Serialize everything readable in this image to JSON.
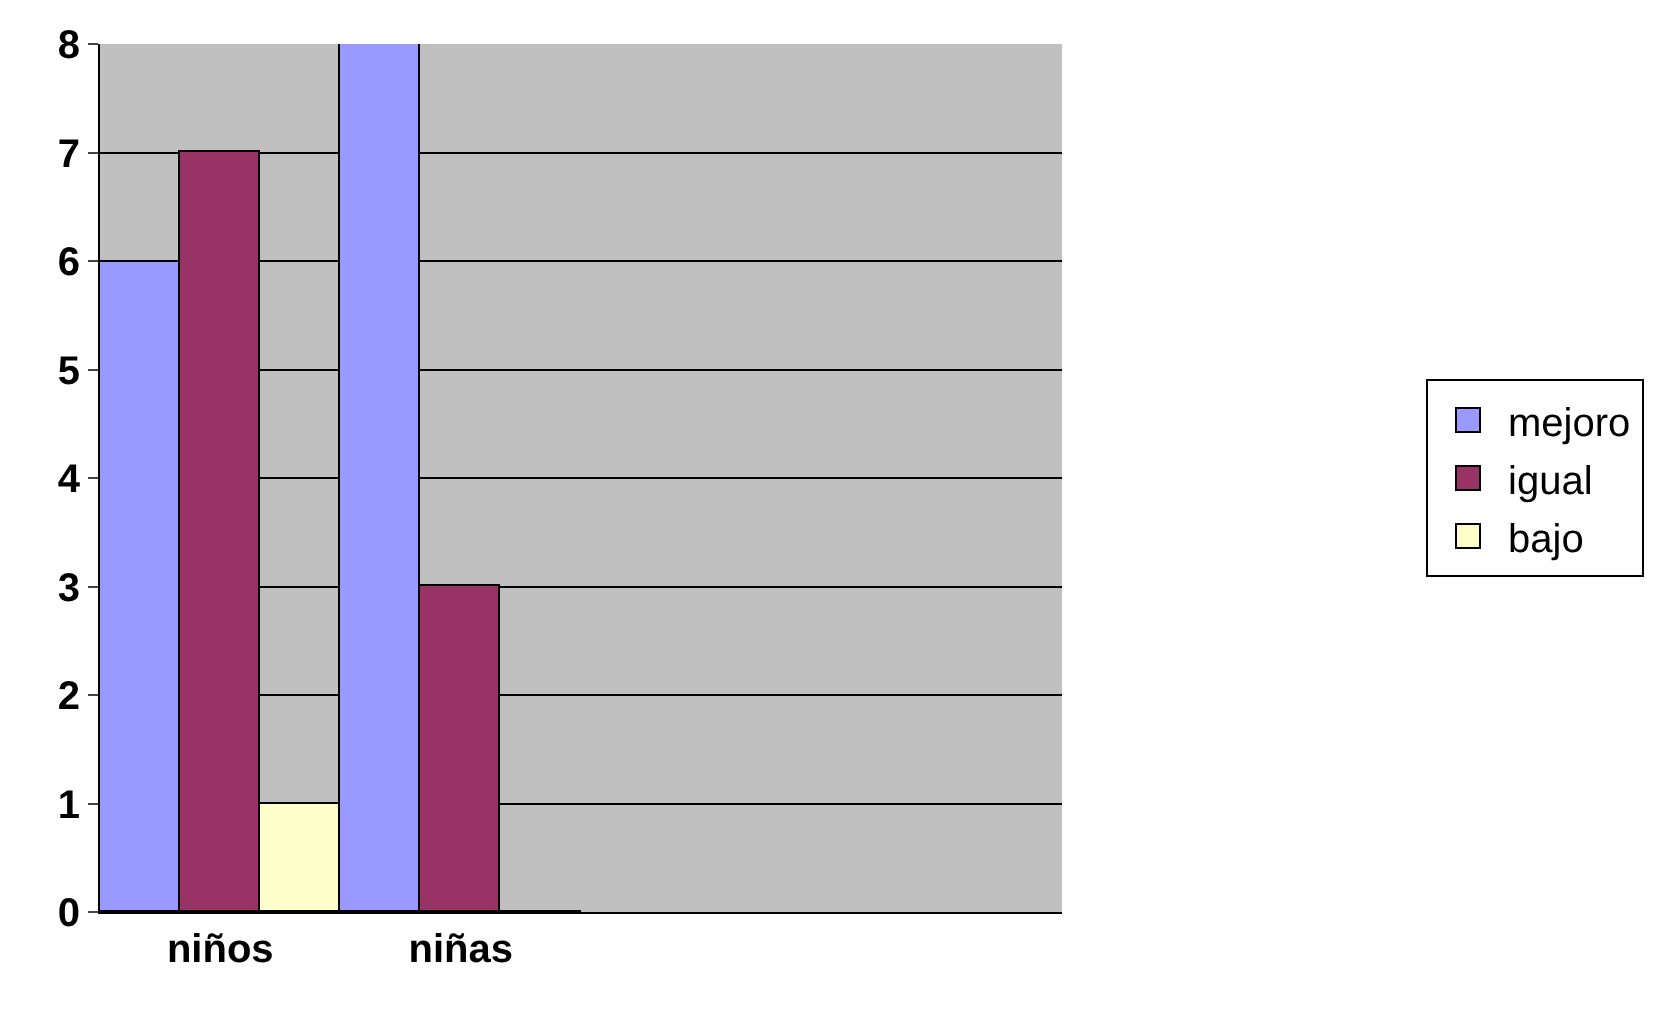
{
  "chart_data": {
    "type": "bar",
    "categories": [
      "niños",
      "niñas",
      null,
      null
    ],
    "series": [
      {
        "name": "mejoro",
        "color": "#9999ff",
        "values": [
          6,
          8,
          null,
          null
        ]
      },
      {
        "name": "igual",
        "color": "#993366",
        "values": [
          7,
          3,
          null,
          null
        ]
      },
      {
        "name": "bajo",
        "color": "#ffffcc",
        "values": [
          1,
          0,
          null,
          null
        ]
      }
    ],
    "ylim": [
      0,
      8
    ],
    "yticks": [
      0,
      1,
      2,
      3,
      4,
      5,
      6,
      7,
      8
    ],
    "grid": "y",
    "legend": "right"
  }
}
